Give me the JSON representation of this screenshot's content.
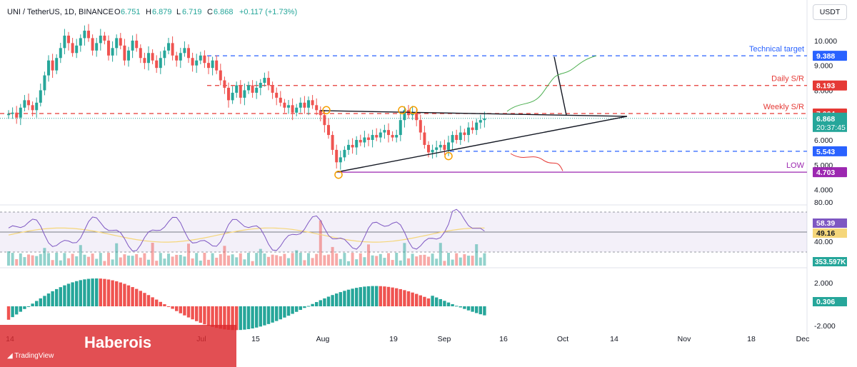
{
  "header": {
    "symbol": "UNI / TetherUS, 1D, BINANCE",
    "open_label": "O",
    "open": "6.751",
    "high_label": "H",
    "high": "6.879",
    "low_label": "L",
    "low": "6.719",
    "close_label": "C",
    "close": "6.868",
    "change": "+0.117 (+1.73%)"
  },
  "currency": "USDT",
  "watermark": {
    "brand": "Haberois",
    "platform": "TradingView"
  },
  "colors": {
    "up": "#26a69a",
    "down": "#ef5350",
    "blue_level": "#2962ff",
    "red_level": "#e53935",
    "low_level": "#9c27b0",
    "rsi_line": "#7e57c2",
    "rsi_ma": "#f5d67a",
    "annotation_green": "#4caf50",
    "annotation_red": "#e53935",
    "circle": "#f59f00"
  },
  "chart_data": {
    "type": "candlestick",
    "price_axis": {
      "min": 3.7,
      "max": 10.6,
      "ticks": [
        "10.000",
        "9.000",
        "8.000",
        "7.000",
        "6.000",
        "5.000",
        "4.000"
      ]
    },
    "time_axis": {
      "labels": [
        "14",
        "Jul",
        "15",
        "Aug",
        "19",
        "Sep",
        "16",
        "Oct",
        "14",
        "Nov",
        "18",
        "Dec"
      ]
    },
    "levels": [
      {
        "name": "Technical target",
        "value": 9.388,
        "tag": "9.388",
        "style": "blue-dashed"
      },
      {
        "name": "Daily S/R",
        "value": 8.193,
        "tag": "8.193",
        "style": "red-dashed"
      },
      {
        "name": "Weekly S/R",
        "value": 7.064,
        "tag": "7.064",
        "style": "red-dashed"
      },
      {
        "name": "",
        "value": 5.543,
        "tag": "5.543",
        "style": "blue-dashed"
      },
      {
        "name": "LOW",
        "value": 4.703,
        "tag": "4.703",
        "style": "purple-solid"
      }
    ],
    "current_price": {
      "value": 6.868,
      "tag": "6.868",
      "countdown": "20:37:45"
    },
    "closes": [
      7.05,
      7.1,
      6.9,
      7.3,
      7.6,
      7.4,
      7.2,
      7.5,
      8.0,
      8.6,
      9.2,
      8.8,
      9.3,
      9.7,
      10.2,
      9.9,
      9.5,
      9.8,
      10.1,
      10.4,
      10.1,
      9.6,
      9.9,
      10.2,
      10.0,
      9.4,
      9.7,
      10.1,
      9.8,
      9.2,
      9.6,
      10.0,
      9.7,
      9.3,
      9.1,
      9.5,
      9.2,
      8.9,
      9.3,
      9.6,
      9.9,
      9.4,
      9.2,
      9.5,
      9.7,
      9.3,
      9.0,
      9.2,
      9.4,
      9.1,
      8.9,
      9.2,
      8.8,
      8.4,
      8.1,
      7.6,
      7.9,
      8.2,
      7.7,
      8.0,
      8.2,
      7.9,
      8.1,
      8.3,
      8.5,
      8.2,
      7.9,
      7.7,
      7.5,
      7.3,
      7.4,
      7.1,
      7.3,
      7.5,
      7.3,
      7.6,
      7.4,
      7.2,
      7.0,
      6.6,
      6.2,
      5.6,
      5.1,
      5.3,
      5.6,
      5.8,
      5.7,
      6.0,
      5.9,
      6.1,
      6.0,
      6.2,
      6.1,
      6.3,
      6.4,
      6.2,
      6.1,
      6.2,
      6.8,
      7.2,
      7.0,
      7.1,
      6.8,
      6.3,
      5.8,
      5.5,
      5.6,
      5.7,
      5.8,
      5.6,
      5.9,
      6.2,
      6.0,
      6.3,
      6.2,
      6.5,
      6.4,
      6.7,
      6.8,
      6.868
    ],
    "rsi": {
      "axis": [
        "80.00",
        "40.00"
      ],
      "value": "58.39",
      "ma_value": "49.16"
    },
    "volume": {
      "value": "353.597K"
    },
    "macd_hist": {
      "axis": [
        "2.000",
        "-2.000"
      ],
      "value": "0.306"
    }
  }
}
